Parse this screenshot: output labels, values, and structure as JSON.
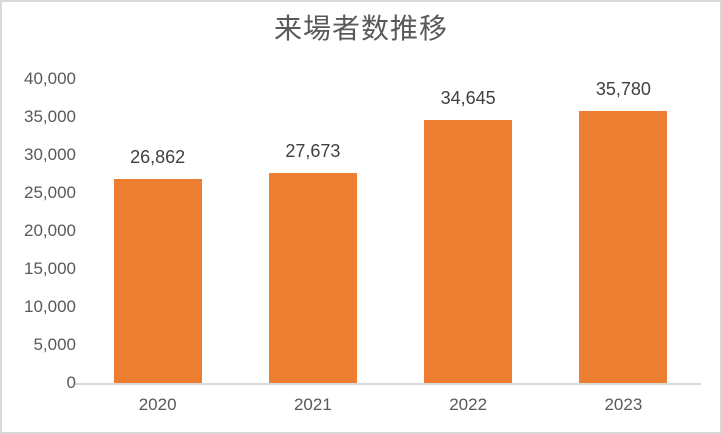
{
  "chart_data": {
    "type": "bar",
    "title": "来場者数推移",
    "categories": [
      "2020",
      "2021",
      "2022",
      "2023"
    ],
    "values": [
      26862,
      27673,
      34645,
      35780
    ],
    "data_labels": [
      "26,862",
      "27,673",
      "34,645",
      "35,780"
    ],
    "xlabel": "",
    "ylabel": "",
    "ylim": [
      0,
      40000
    ],
    "y_ticks": [
      0,
      5000,
      10000,
      15000,
      20000,
      25000,
      30000,
      35000,
      40000
    ],
    "y_tick_labels": [
      "0",
      "5,000",
      "10,000",
      "15,000",
      "20,000",
      "25,000",
      "30,000",
      "35,000",
      "40,000"
    ],
    "grid": false,
    "legend": "none",
    "bar_color": "#ED7D31"
  },
  "colors": {
    "bar": "#ED7D31",
    "title_text": "#595959",
    "axis_text": "#595959",
    "data_label_text": "#404040",
    "axis_line": "#D9D9D9",
    "border": "#D9D9D9",
    "background": "#FFFFFF"
  }
}
